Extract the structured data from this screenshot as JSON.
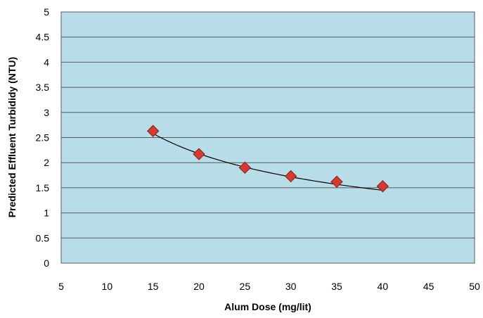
{
  "colors": {
    "plot_background": "#b7dde8",
    "gridline": "#5a5a5a",
    "marker_fill": "#d23a32",
    "marker_stroke": "#8a1e18",
    "trendline": "#000000"
  },
  "chart_data": {
    "type": "scatter",
    "title": "",
    "xlabel": "Alum Dose (mg/lit)",
    "ylabel": "Predicted Effluent Turbididy (NTU)",
    "xlim": [
      5,
      50
    ],
    "ylim": [
      0,
      5
    ],
    "x_ticks": [
      5,
      10,
      15,
      20,
      25,
      30,
      35,
      40,
      45,
      50
    ],
    "y_ticks": [
      0,
      0.5,
      1,
      1.5,
      2,
      2.5,
      3,
      3.5,
      4,
      4.5,
      5
    ],
    "x_tick_labels": [
      "5",
      "10",
      "15",
      "20",
      "25",
      "30",
      "35",
      "40",
      "45",
      "50"
    ],
    "y_tick_labels": [
      "0",
      "0.5",
      "1",
      "1.5",
      "2",
      "2.5",
      "3",
      "3.5",
      "4",
      "4.5",
      "5"
    ],
    "grid": "horizontal",
    "legend": "none",
    "marker": "diamond",
    "series": [
      {
        "x": [
          15,
          20,
          25,
          30,
          35,
          40
        ],
        "y": [
          2.63,
          2.17,
          1.9,
          1.73,
          1.62,
          1.53
        ]
      }
    ],
    "trendline": {
      "type": "power",
      "x": [
        15,
        40
      ],
      "y": [
        2.58,
        1.45
      ]
    }
  }
}
